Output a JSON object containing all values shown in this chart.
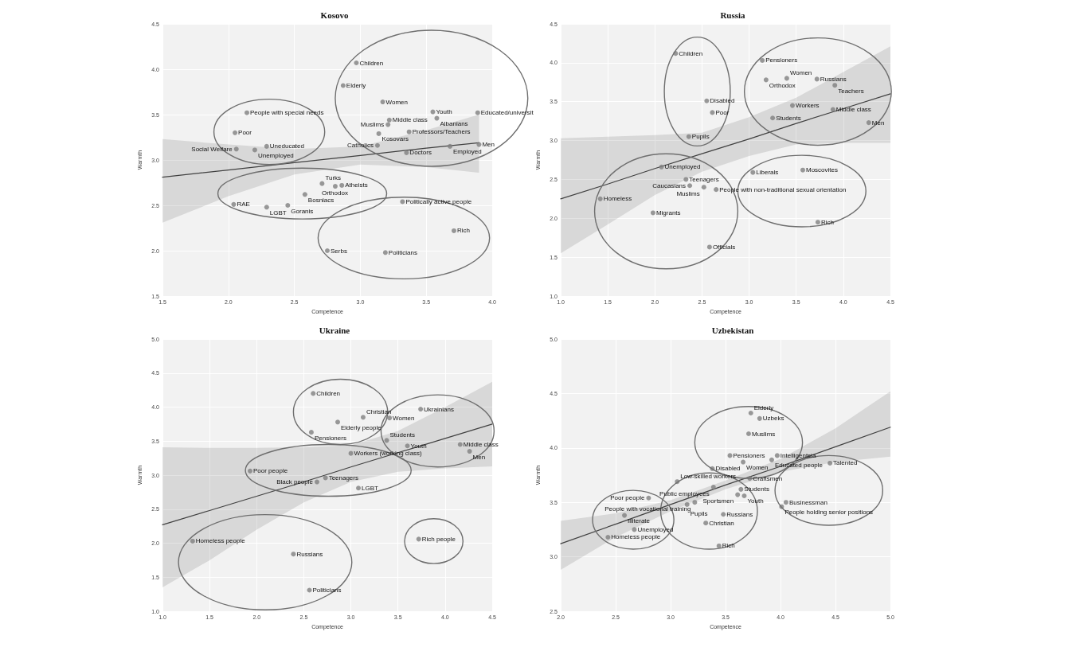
{
  "chart_data": [
    {
      "type": "scatter",
      "title": "Kosovo",
      "xlabel": "Competence",
      "ylabel": "Warmth",
      "xlim": [
        1.5,
        4.0
      ],
      "ylim": [
        1.5,
        4.5
      ],
      "xticks": [
        1.5,
        {
          "value": 2,
          "label": "2.0"
        },
        2.5,
        {
          "value": 3,
          "label": "3.0"
        },
        3.5,
        {
          "value": 4,
          "label": "4.0"
        }
      ],
      "yticks": [
        1.5,
        {
          "value": 2,
          "label": "2.0"
        },
        2.5,
        {
          "value": 3,
          "label": "3.0"
        },
        3.5,
        {
          "value": 4,
          "label": "4.0"
        },
        4.5
      ],
      "grid": true,
      "series": [
        {
          "marker": "circle",
          "color": "#7f7f7f",
          "x": [
            2.97,
            2.87,
            3.17,
            3.55,
            3.89,
            3.58,
            3.22,
            3.21,
            3.37,
            3.14,
            3.13,
            3.68,
            3.9,
            3.35,
            2.14,
            2.05,
            2.06,
            2.29,
            2.2,
            2.71,
            2.86,
            2.81,
            2.58,
            2.04,
            2.29,
            2.45,
            3.32,
            3.71,
            2.75,
            3.19
          ],
          "values": [
            4.07,
            3.82,
            3.64,
            3.53,
            3.52,
            3.46,
            3.44,
            3.39,
            3.31,
            3.29,
            3.16,
            3.15,
            3.17,
            3.08,
            3.52,
            3.3,
            3.12,
            3.15,
            3.11,
            2.74,
            2.72,
            2.71,
            2.62,
            2.51,
            2.48,
            2.5,
            2.54,
            2.22,
            2.0,
            1.98
          ]
        },
        {
          "type": "line",
          "marker": "none",
          "color": "#404040",
          "x": [
            1.5,
            2.0,
            2.5,
            3.0,
            3.5,
            3.9
          ],
          "values": [
            2.81,
            2.89,
            2.97,
            3.05,
            3.13,
            3.19
          ],
          "lower": [
            2.31,
            2.6,
            2.84,
            2.95,
            2.92,
            2.86
          ],
          "upper": [
            3.23,
            3.17,
            3.12,
            3.15,
            3.33,
            3.5
          ]
        }
      ],
      "annotations": [
        {
          "text": "Children",
          "x": 2.97,
          "y": 4.07
        },
        {
          "text": "Elderly",
          "x": 2.87,
          "y": 3.82
        },
        {
          "text": "Women",
          "x": 3.17,
          "y": 3.64
        },
        {
          "text": "Youth",
          "x": 3.55,
          "y": 3.53
        },
        {
          "text": "Educated/universit",
          "x": 3.89,
          "y": 3.52
        },
        {
          "text": "Albanians",
          "x": 3.58,
          "y": 3.46
        },
        {
          "text": "Middle class",
          "x": 3.22,
          "y": 3.44
        },
        {
          "text": "Muslims",
          "x": 3.21,
          "y": 3.39
        },
        {
          "text": "Professors/Teachers",
          "x": 3.37,
          "y": 3.31
        },
        {
          "text": "Kosovars",
          "x": 3.14,
          "y": 3.29
        },
        {
          "text": "Catholics",
          "x": 3.13,
          "y": 3.16
        },
        {
          "text": "Employed",
          "x": 3.68,
          "y": 3.15
        },
        {
          "text": "Men",
          "x": 3.9,
          "y": 3.17
        },
        {
          "text": "Doctors",
          "x": 3.35,
          "y": 3.08
        },
        {
          "text": "People with special needs",
          "x": 2.14,
          "y": 3.52
        },
        {
          "text": "Poor",
          "x": 2.05,
          "y": 3.3
        },
        {
          "text": "Social Welfare",
          "x": 2.06,
          "y": 3.12
        },
        {
          "text": "Uneducated",
          "x": 2.29,
          "y": 3.15
        },
        {
          "text": "Unemployed",
          "x": 2.2,
          "y": 3.11
        },
        {
          "text": "Turks",
          "x": 2.71,
          "y": 2.74
        },
        {
          "text": "Atheists",
          "x": 2.86,
          "y": 2.72
        },
        {
          "text": "Orthodox",
          "x": 2.81,
          "y": 2.71
        },
        {
          "text": "Bosniacs",
          "x": 2.58,
          "y": 2.62
        },
        {
          "text": "RAE",
          "x": 2.04,
          "y": 2.51
        },
        {
          "text": "LGBT",
          "x": 2.29,
          "y": 2.48
        },
        {
          "text": "Goranis",
          "x": 2.45,
          "y": 2.5
        },
        {
          "text": "Politically active people",
          "x": 3.32,
          "y": 2.54
        },
        {
          "text": "Rich",
          "x": 3.71,
          "y": 2.22
        },
        {
          "text": "Serbs",
          "x": 2.75,
          "y": 2.0
        },
        {
          "text": "Politicians",
          "x": 3.19,
          "y": 1.98
        }
      ]
    },
    {
      "type": "scatter",
      "title": "Russia",
      "xlabel": "Competence",
      "ylabel": "Warmth",
      "xlim": [
        1.0,
        4.5
      ],
      "ylim": [
        1.0,
        4.5
      ],
      "xticks": [
        {
          "value": 1,
          "label": "1.0"
        },
        1.5,
        {
          "value": 2,
          "label": "2.0"
        },
        2.5,
        {
          "value": 3,
          "label": "3.0"
        },
        3.5,
        {
          "value": 4,
          "label": "4.0"
        },
        4.5
      ],
      "yticks": [
        {
          "value": 1,
          "label": "1.0"
        },
        1.5,
        {
          "value": 2,
          "label": "2.0"
        },
        2.5,
        {
          "value": 3,
          "label": "3.0"
        },
        3.5,
        {
          "value": 4,
          "label": "4.0"
        },
        4.5
      ],
      "grid": true,
      "series": [
        {
          "marker": "circle",
          "color": "#7f7f7f",
          "x": [
            2.22,
            3.14,
            3.18,
            3.4,
            3.72,
            3.91,
            2.55,
            2.61,
            3.46,
            3.89,
            3.25,
            4.27,
            2.36,
            2.07,
            3.04,
            3.57,
            2.33,
            2.37,
            2.52,
            2.65,
            1.42,
            1.98,
            3.73,
            2.58
          ],
          "values": [
            4.12,
            4.03,
            3.78,
            3.8,
            3.79,
            3.71,
            3.51,
            3.36,
            3.45,
            3.4,
            3.29,
            3.23,
            3.05,
            2.66,
            2.59,
            2.62,
            2.5,
            2.42,
            2.4,
            2.37,
            2.25,
            2.07,
            1.95,
            1.63
          ]
        },
        {
          "type": "line",
          "marker": "none",
          "color": "#404040",
          "x": [
            1.0,
            1.5,
            2.0,
            2.5,
            3.0,
            3.5,
            4.0,
            4.5
          ],
          "values": [
            2.25,
            2.44,
            2.64,
            2.83,
            3.02,
            3.22,
            3.41,
            3.6
          ],
          "lower": [
            1.55,
            1.92,
            2.3,
            2.6,
            2.8,
            2.95,
            2.97,
            2.97
          ],
          "upper": [
            3.03,
            3.05,
            3.07,
            3.1,
            3.3,
            3.55,
            3.88,
            4.21
          ]
        }
      ],
      "annotations": [
        {
          "text": "Children",
          "x": 2.22,
          "y": 4.12
        },
        {
          "text": "Pensioners",
          "x": 3.14,
          "y": 4.03
        },
        {
          "text": "Orthodox",
          "x": 3.18,
          "y": 3.78
        },
        {
          "text": "Women",
          "x": 3.4,
          "y": 3.8
        },
        {
          "text": "Russians",
          "x": 3.72,
          "y": 3.79
        },
        {
          "text": "Teachers",
          "x": 3.91,
          "y": 3.71
        },
        {
          "text": "Disabled",
          "x": 2.55,
          "y": 3.51
        },
        {
          "text": "Poor",
          "x": 2.61,
          "y": 3.36
        },
        {
          "text": "Workers",
          "x": 3.46,
          "y": 3.45
        },
        {
          "text": "Middle class",
          "x": 3.89,
          "y": 3.4
        },
        {
          "text": "Students",
          "x": 3.25,
          "y": 3.29
        },
        {
          "text": "Men",
          "x": 4.27,
          "y": 3.23
        },
        {
          "text": "Pupils",
          "x": 2.36,
          "y": 3.05
        },
        {
          "text": "Unemployed",
          "x": 2.07,
          "y": 2.66
        },
        {
          "text": "Liberals",
          "x": 3.04,
          "y": 2.59
        },
        {
          "text": "Moscovites",
          "x": 3.57,
          "y": 2.62
        },
        {
          "text": "Teenagers",
          "x": 2.33,
          "y": 2.5
        },
        {
          "text": "Caucasians",
          "x": 2.37,
          "y": 2.42
        },
        {
          "text": "Muslims",
          "x": 2.52,
          "y": 2.4
        },
        {
          "text": "People with non-traditional sexual orientation",
          "x": 2.65,
          "y": 2.37
        },
        {
          "text": "Homeless",
          "x": 1.42,
          "y": 2.25
        },
        {
          "text": "Migrants",
          "x": 1.98,
          "y": 2.07
        },
        {
          "text": "Rich",
          "x": 3.73,
          "y": 1.95
        },
        {
          "text": "Officials",
          "x": 2.58,
          "y": 1.63
        }
      ]
    },
    {
      "type": "scatter",
      "title": "Ukraine",
      "xlabel": "Competence",
      "ylabel": "Warmth",
      "xlim": [
        1.0,
        4.5
      ],
      "ylim": [
        1.0,
        5.0
      ],
      "xticks": [
        {
          "value": 1,
          "label": "1.0"
        },
        1.5,
        {
          "value": 2,
          "label": "2.0"
        },
        2.5,
        {
          "value": 3,
          "label": "3.0"
        },
        3.5,
        {
          "value": 4,
          "label": "4.0"
        },
        4.5
      ],
      "yticks": [
        {
          "value": 1,
          "label": "1.0"
        },
        1.5,
        {
          "value": 2,
          "label": "2.0"
        },
        2.5,
        {
          "value": 3,
          "label": "3.0"
        },
        3.5,
        {
          "value": 4,
          "label": "4.0"
        },
        4.5,
        {
          "value": 5,
          "label": "5.0"
        }
      ],
      "grid": true,
      "series": [
        {
          "marker": "circle",
          "color": "#7f7f7f",
          "x": [
            2.6,
            3.13,
            3.41,
            3.74,
            2.86,
            2.58,
            3.38,
            3.6,
            4.16,
            4.26,
            3.0,
            1.93,
            2.73,
            2.64,
            3.08,
            1.32,
            2.39,
            3.72,
            2.56
          ],
          "values": [
            4.2,
            3.85,
            3.84,
            3.97,
            3.78,
            3.63,
            3.51,
            3.43,
            3.45,
            3.35,
            3.32,
            3.06,
            2.96,
            2.9,
            2.81,
            2.03,
            1.84,
            2.06,
            1.31
          ]
        },
        {
          "type": "line",
          "marker": "none",
          "color": "#404040",
          "x": [
            1.0,
            1.5,
            2.0,
            2.5,
            3.0,
            3.5,
            4.0,
            4.5
          ],
          "values": [
            2.27,
            2.48,
            2.69,
            2.9,
            3.12,
            3.33,
            3.54,
            3.75
          ],
          "lower": [
            1.35,
            1.75,
            2.2,
            2.6,
            2.9,
            3.05,
            3.1,
            3.13
          ],
          "upper": [
            3.41,
            3.4,
            3.4,
            3.41,
            3.44,
            3.65,
            4.0,
            4.37
          ]
        }
      ],
      "annotations": [
        {
          "text": "Children",
          "x": 2.6,
          "y": 4.2
        },
        {
          "text": "Christian",
          "x": 3.13,
          "y": 3.85
        },
        {
          "text": "Women",
          "x": 3.41,
          "y": 3.84
        },
        {
          "text": "Ukrainians",
          "x": 3.74,
          "y": 3.97
        },
        {
          "text": "Elderly people",
          "x": 2.86,
          "y": 3.78
        },
        {
          "text": "Pensioners",
          "x": 2.58,
          "y": 3.63
        },
        {
          "text": "Students",
          "x": 3.38,
          "y": 3.51
        },
        {
          "text": "Youth",
          "x": 3.6,
          "y": 3.43
        },
        {
          "text": "Middle class",
          "x": 4.16,
          "y": 3.45
        },
        {
          "text": "Men",
          "x": 4.26,
          "y": 3.35
        },
        {
          "text": "Workers (working class)",
          "x": 3.0,
          "y": 3.32
        },
        {
          "text": "Poor people",
          "x": 1.93,
          "y": 3.06
        },
        {
          "text": "Teenagers",
          "x": 2.73,
          "y": 2.96
        },
        {
          "text": "Black people",
          "x": 2.64,
          "y": 2.9
        },
        {
          "text": "LGBT",
          "x": 3.08,
          "y": 2.81
        },
        {
          "text": "Homeless people",
          "x": 1.32,
          "y": 2.03
        },
        {
          "text": "Russians",
          "x": 2.39,
          "y": 1.84
        },
        {
          "text": "Rich people",
          "x": 3.72,
          "y": 2.06
        },
        {
          "text": "Politicians",
          "x": 2.56,
          "y": 1.31
        }
      ]
    },
    {
      "type": "scatter",
      "title": "Uzbekistan",
      "xlabel": "Competence",
      "ylabel": "Warmth",
      "xlim": [
        2.0,
        5.0
      ],
      "ylim": [
        2.5,
        5.0
      ],
      "xticks": [
        {
          "value": 2,
          "label": "2.0"
        },
        2.5,
        {
          "value": 3,
          "label": "3.0"
        },
        3.5,
        {
          "value": 4,
          "label": "4.0"
        },
        4.5,
        {
          "value": 5,
          "label": "5.0"
        }
      ],
      "yticks": [
        2.5,
        {
          "value": 3,
          "label": "3.0"
        },
        3.5,
        {
          "value": 4,
          "label": "4.0"
        },
        4.5,
        {
          "value": 5,
          "label": "5.0"
        }
      ],
      "grid": true,
      "series": [
        {
          "marker": "circle",
          "color": "#7f7f7f",
          "x": [
            3.73,
            3.81,
            3.71,
            3.54,
            3.66,
            3.97,
            3.92,
            4.45,
            3.38,
            3.72,
            3.06,
            3.39,
            3.64,
            3.61,
            3.67,
            2.8,
            3.22,
            3.15,
            4.05,
            4.01,
            2.58,
            3.48,
            3.32,
            2.67,
            2.43,
            3.44
          ],
          "values": [
            4.32,
            4.27,
            4.13,
            3.93,
            3.87,
            3.93,
            3.89,
            3.86,
            3.81,
            3.72,
            3.69,
            3.64,
            3.62,
            3.57,
            3.56,
            3.54,
            3.5,
            3.48,
            3.5,
            3.46,
            3.38,
            3.39,
            3.31,
            3.25,
            3.18,
            3.1
          ]
        },
        {
          "type": "line",
          "marker": "none",
          "color": "#404040",
          "x": [
            2.0,
            2.5,
            3.0,
            3.5,
            4.0,
            4.5,
            5.0
          ],
          "values": [
            3.12,
            3.3,
            3.48,
            3.66,
            3.83,
            4.01,
            4.19
          ],
          "lower": [
            2.88,
            3.18,
            3.42,
            3.62,
            3.78,
            3.87,
            3.92
          ],
          "upper": [
            3.33,
            3.4,
            3.52,
            3.7,
            3.9,
            4.18,
            4.52
          ]
        }
      ],
      "annotations": [
        {
          "text": "Elderly",
          "x": 3.73,
          "y": 4.32
        },
        {
          "text": "Uzbeks",
          "x": 3.81,
          "y": 4.27
        },
        {
          "text": "Muslims",
          "x": 3.71,
          "y": 4.13
        },
        {
          "text": "Pensioners",
          "x": 3.54,
          "y": 3.93
        },
        {
          "text": "Women",
          "x": 3.66,
          "y": 3.87
        },
        {
          "text": "Intelligentsia",
          "x": 3.97,
          "y": 3.93
        },
        {
          "text": "Educated people",
          "x": 3.92,
          "y": 3.89
        },
        {
          "text": "Talented",
          "x": 4.45,
          "y": 3.86
        },
        {
          "text": "Disabled",
          "x": 3.38,
          "y": 3.81
        },
        {
          "text": "Craftsmen",
          "x": 3.72,
          "y": 3.72
        },
        {
          "text": "Low-skilled workers",
          "x": 3.06,
          "y": 3.69
        },
        {
          "text": "Public employees",
          "x": 3.39,
          "y": 3.64
        },
        {
          "text": "Students",
          "x": 3.64,
          "y": 3.62
        },
        {
          "text": "Sportsmen",
          "x": 3.61,
          "y": 3.57
        },
        {
          "text": "Youth",
          "x": 3.67,
          "y": 3.56
        },
        {
          "text": "Poor people",
          "x": 2.8,
          "y": 3.54
        },
        {
          "text": "People with vocational training",
          "x": 3.22,
          "y": 3.5
        },
        {
          "text": "Pupils",
          "x": 3.15,
          "y": 3.48
        },
        {
          "text": "Businessman",
          "x": 4.05,
          "y": 3.5
        },
        {
          "text": "People holding senior positions",
          "x": 4.01,
          "y": 3.46
        },
        {
          "text": "Illiterate",
          "x": 2.58,
          "y": 3.38
        },
        {
          "text": "Russians",
          "x": 3.48,
          "y": 3.39
        },
        {
          "text": "Christian",
          "x": 3.32,
          "y": 3.31
        },
        {
          "text": "Unemployed",
          "x": 2.67,
          "y": 3.25
        },
        {
          "text": "Homeless people",
          "x": 2.43,
          "y": 3.18
        },
        {
          "text": "Rich",
          "x": 3.44,
          "y": 3.1
        }
      ]
    }
  ]
}
